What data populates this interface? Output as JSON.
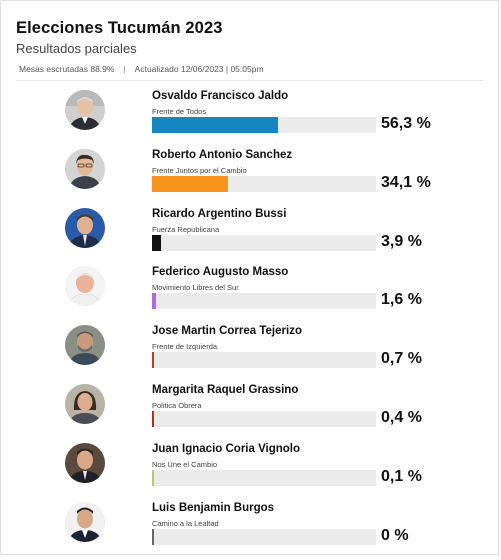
{
  "header": {
    "title": "Elecciones Tucumán 2023",
    "subtitle": "Resultados parciales",
    "mesas": "Mesas escrutadas 88.9%",
    "separator": "|",
    "updated": "Actualizado 12/06/2023 | 05:05pm"
  },
  "candidates": [
    {
      "name": "Osvaldo Francisco Jaldo",
      "party": "Frente de Todos",
      "percent": 56.3,
      "percent_label": "56,3 %",
      "bar_color": "#1487c3"
    },
    {
      "name": "Roberto Antonio Sanchez",
      "party": "Frente Juntos por el Cambio",
      "percent": 34.1,
      "percent_label": "34,1 %",
      "bar_color": "#f7941d"
    },
    {
      "name": "Ricardo Argentino Bussi",
      "party": "Fuerza Republicana",
      "percent": 3.9,
      "percent_label": "3,9 %",
      "bar_color": "#111111"
    },
    {
      "name": "Federico Augusto Masso",
      "party": "Movimiento Libres del Sur",
      "percent": 1.6,
      "percent_label": "1,6 %",
      "bar_color": "#a86fe0"
    },
    {
      "name": "Jose Martin Correa Tejerizo",
      "party": "Frente de Izquierda",
      "percent": 0.7,
      "percent_label": "0,7 %",
      "bar_color": "#c0392b"
    },
    {
      "name": "Margarita Raquel Grassino",
      "party": "Politica Obrera",
      "percent": 0.4,
      "percent_label": "0,4 %",
      "bar_color": "#a93226"
    },
    {
      "name": "Juan Ignacio Coria Vignolo",
      "party": "Nos Une el Cambio",
      "percent": 0.1,
      "percent_label": "0,1 %",
      "bar_color": "#b5c97a"
    },
    {
      "name": "Luis Benjamin Burgos",
      "party": "Camino a la Lealtad",
      "percent": 0.0,
      "percent_label": "0 %",
      "bar_color": "#666666"
    }
  ]
}
